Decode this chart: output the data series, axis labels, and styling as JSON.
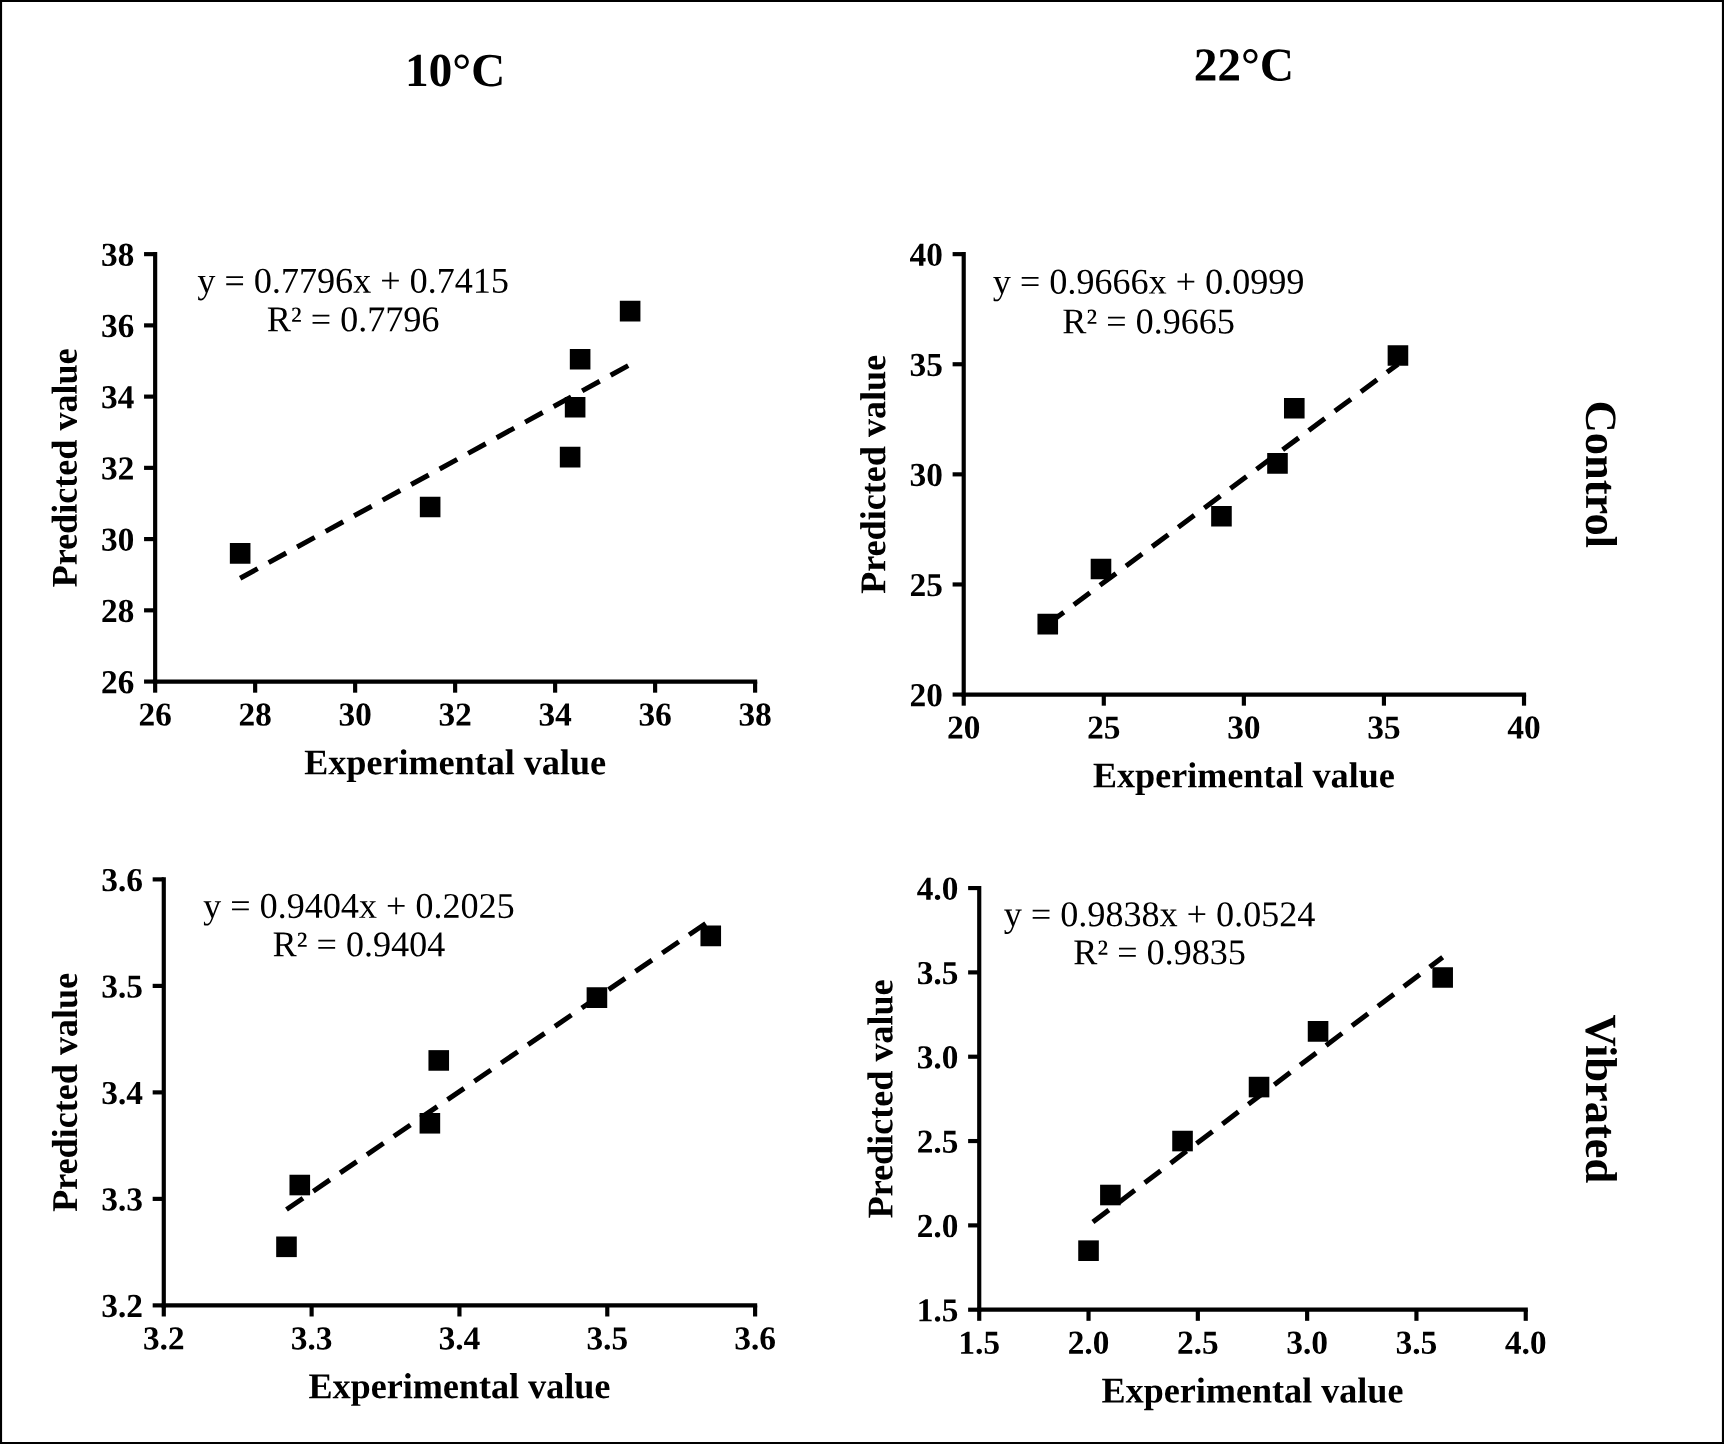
{
  "chart_data": [
    {
      "type": "scatter",
      "title": "10°C",
      "xlabel": "Experimental value",
      "ylabel": "Predicted value",
      "xlim": [
        26,
        38
      ],
      "xticks": [
        26,
        28,
        30,
        32,
        34,
        36,
        38
      ],
      "ylim": [
        26,
        38
      ],
      "yticks": [
        26,
        28,
        30,
        32,
        34,
        36,
        38
      ],
      "annotations": [
        "y = 0.7796x + 0.7415",
        "R² = 0.7796"
      ],
      "series": [
        {
          "color": "#000000",
          "marker": "square",
          "x": [
            27.7,
            31.5,
            34.3,
            34.4,
            34.5,
            35.5
          ],
          "values": [
            29.6,
            30.9,
            32.3,
            33.7,
            35.05,
            36.4
          ]
        },
        {
          "type": "line",
          "color": "#000000",
          "marker": "none",
          "line_style": "dashed",
          "x": [
            27.7,
            35.5
          ],
          "values": [
            28.9,
            34.9
          ]
        }
      ]
    },
    {
      "type": "scatter",
      "title": "22°C",
      "xlabel": "Experimental value",
      "ylabel": "Predicted value",
      "xlim": [
        20,
        40
      ],
      "xticks": [
        20,
        25,
        30,
        35,
        40
      ],
      "ylim": [
        20,
        40
      ],
      "yticks": [
        20,
        25,
        30,
        35,
        40
      ],
      "annotations": [
        "y = 0.9666x + 0.0999",
        "R² = 0.9665",
        "Control"
      ],
      "series": [
        {
          "color": "#000000",
          "marker": "square",
          "x": [
            23.0,
            24.9,
            29.2,
            31.2,
            31.8,
            35.5
          ],
          "values": [
            23.2,
            25.7,
            28.1,
            30.5,
            33.0,
            35.4
          ]
        },
        {
          "type": "line",
          "color": "#000000",
          "marker": "none",
          "line_style": "dashed",
          "x": [
            23.0,
            35.5
          ],
          "values": [
            23.2,
            35.0
          ]
        }
      ]
    },
    {
      "type": "scatter",
      "xlabel": "Experimental value",
      "ylabel": "Predicted value",
      "xlim": [
        3.2,
        3.6
      ],
      "xticks": [
        3.2,
        3.3,
        3.4,
        3.5,
        3.6
      ],
      "ylim": [
        3.2,
        3.6
      ],
      "yticks": [
        3.2,
        3.3,
        3.4,
        3.5,
        3.6
      ],
      "annotations": [
        "y = 0.9404x + 0.2025",
        "R² = 0.9404"
      ],
      "series": [
        {
          "color": "#000000",
          "marker": "square",
          "x": [
            3.283,
            3.292,
            3.38,
            3.386,
            3.493,
            3.57
          ],
          "values": [
            3.255,
            3.313,
            3.371,
            3.43,
            3.489,
            3.547
          ]
        },
        {
          "type": "line",
          "color": "#000000",
          "marker": "none",
          "line_style": "dashed",
          "x": [
            3.283,
            3.568
          ],
          "values": [
            3.29,
            3.56
          ]
        }
      ]
    },
    {
      "type": "scatter",
      "xlabel": "Experimental value",
      "ylabel": "Predicted value",
      "xlim": [
        1.5,
        4.0
      ],
      "xticks": [
        1.5,
        {
          "value": 2,
          "label": "2.0"
        },
        2.5,
        {
          "value": 3,
          "label": "3.0"
        },
        3.5,
        {
          "value": 4,
          "label": "4.0"
        }
      ],
      "ylim": [
        1.5,
        4.0
      ],
      "yticks": [
        1.5,
        {
          "value": 2,
          "label": "2.0"
        },
        2.5,
        {
          "value": 3,
          "label": "3.0"
        },
        3.5,
        {
          "value": 4,
          "label": "4.0"
        }
      ],
      "annotations": [
        "y = 0.9838x + 0.0524",
        "R² = 0.9835",
        "Vibrated"
      ],
      "series": [
        {
          "color": "#000000",
          "marker": "square",
          "x": [
            2.0,
            2.1,
            2.43,
            2.78,
            3.05,
            3.62
          ],
          "values": [
            1.85,
            2.18,
            2.5,
            2.82,
            3.15,
            3.47
          ]
        },
        {
          "type": "line",
          "color": "#000000",
          "marker": "none",
          "line_style": "dashed",
          "x": [
            2.02,
            3.62
          ],
          "values": [
            2.02,
            3.59
          ]
        }
      ]
    }
  ]
}
